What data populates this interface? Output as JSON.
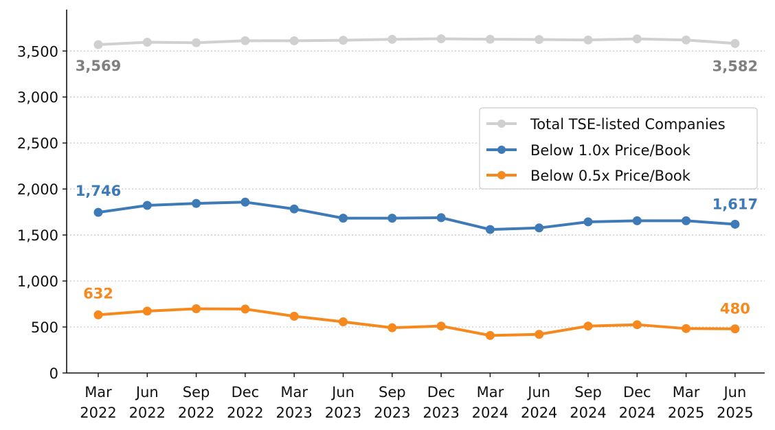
{
  "chart_data": {
    "type": "line",
    "title": "",
    "xlabel": "",
    "ylabel": "",
    "ylim": [
      0,
      3950
    ],
    "y_ticks": [
      0,
      500,
      1000,
      1500,
      2000,
      2500,
      3000,
      3500
    ],
    "y_tick_labels": [
      "0",
      "500",
      "1,000",
      "1,500",
      "2,000",
      "2,500",
      "3,000",
      "3,500"
    ],
    "grid": "horizontal-dotted",
    "categories": [
      [
        "Mar",
        "2022"
      ],
      [
        "Jun",
        "2022"
      ],
      [
        "Sep",
        "2022"
      ],
      [
        "Dec",
        "2022"
      ],
      [
        "Mar",
        "2023"
      ],
      [
        "Jun",
        "2023"
      ],
      [
        "Sep",
        "2023"
      ],
      [
        "Dec",
        "2023"
      ],
      [
        "Mar",
        "2024"
      ],
      [
        "Jun",
        "2024"
      ],
      [
        "Sep",
        "2024"
      ],
      [
        "Dec",
        "2024"
      ],
      [
        "Mar",
        "2025"
      ],
      [
        "Jun",
        "2025"
      ]
    ],
    "series": [
      {
        "name": "Total TSE-listed Companies",
        "color": "#d0d0d0",
        "label_color": "#808080",
        "values": [
          3569,
          3595,
          3590,
          3612,
          3611,
          3617,
          3627,
          3633,
          3628,
          3625,
          3620,
          3632,
          3620,
          3582
        ],
        "start_label": "3,569",
        "end_label": "3,582"
      },
      {
        "name": "Below 1.0x Price/Book",
        "color": "#3e7ab6",
        "label_color": "#3e7ab6",
        "values": [
          1746,
          1822,
          1843,
          1857,
          1783,
          1683,
          1683,
          1688,
          1560,
          1577,
          1643,
          1655,
          1655,
          1617
        ],
        "start_label": "1,746",
        "end_label": "1,617"
      },
      {
        "name": "Below 0.5x Price/Book",
        "color": "#f5891d",
        "label_color": "#f5891d",
        "values": [
          632,
          673,
          698,
          695,
          617,
          556,
          492,
          510,
          408,
          420,
          510,
          525,
          483,
          480
        ],
        "start_label": "632",
        "end_label": "480"
      }
    ],
    "legend": {
      "position": "center-right",
      "entries": [
        "Total TSE-listed Companies",
        "Below 1.0x Price/Book",
        "Below 0.5x Price/Book"
      ]
    }
  }
}
